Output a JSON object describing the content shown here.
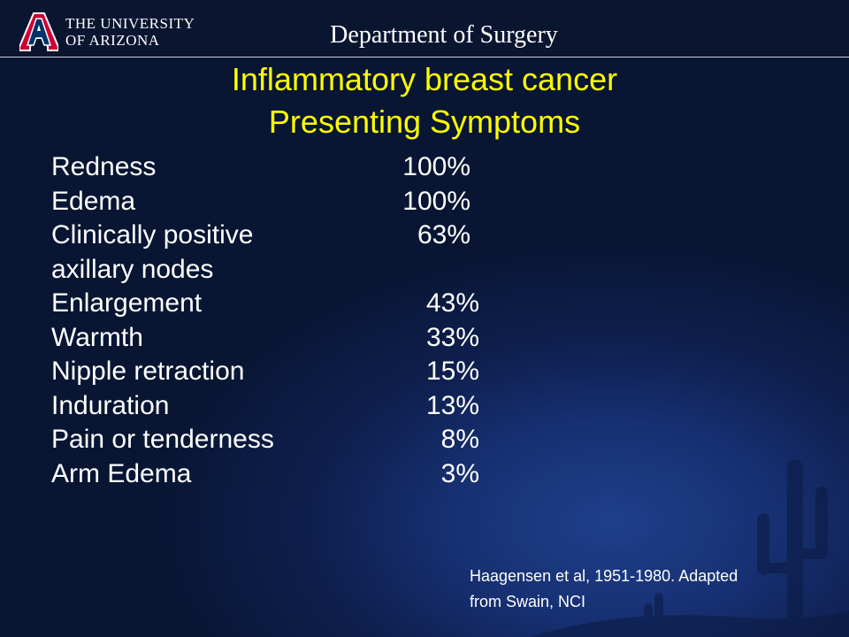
{
  "header": {
    "logo_lines": [
      "THE UNIVERSITY",
      "OF ARIZONA"
    ],
    "logo_symbol": "A",
    "department": "Department of Surgery"
  },
  "slide": {
    "title_line1": "Inflammatory breast cancer",
    "title_line2": "Presenting Symptoms",
    "symptoms": [
      {
        "label": "Redness",
        "value": "100%"
      },
      {
        "label": "Edema",
        "value": "100%"
      },
      {
        "label": "Clinically positive",
        "value": "63%"
      },
      {
        "label": "axillary nodes",
        "value": ""
      },
      {
        "label": "Enlargement",
        "value": "43%"
      },
      {
        "label": "Warmth",
        "value": "33%"
      },
      {
        "label": "Nipple retraction",
        "value": "15%"
      },
      {
        "label": "Induration",
        "value": "13%"
      },
      {
        "label": "Pain or tenderness",
        "value": "8%"
      },
      {
        "label": "Arm Edema",
        "value": "3%"
      }
    ],
    "citation_line1": "Haagensen et al, 1951-1980.  Adapted",
    "citation_line2": "from Swain, NCI"
  },
  "colors": {
    "background": "#0e1f4e",
    "title": "#ffff00",
    "text": "#ffffff",
    "logo_red": "#cc0033",
    "logo_blue": "#003366"
  },
  "icons": {
    "logo": "university-a-logo-icon",
    "background": "cactus-silhouette-icon"
  }
}
